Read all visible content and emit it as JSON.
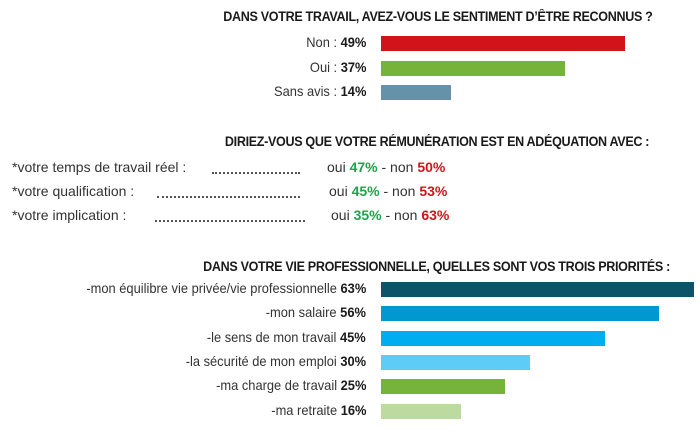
{
  "chart_data": [
    {
      "type": "bar",
      "title": "DANS VOTRE TRAVAIL, AVEZ-VOUS LE SENTIMENT D’ÊTRE RECONNUS ?",
      "categories": [
        "Non :",
        "Oui :",
        "Sans avis :"
      ],
      "values": [
        49,
        37,
        14
      ],
      "value_labels": [
        "49%",
        "37%",
        "14%"
      ],
      "colors": [
        "#d0141a",
        "#75b33a",
        "#6592a8"
      ],
      "orientation": "horizontal"
    },
    {
      "type": "table",
      "title": "DIRIEZ-VOUS QUE VOTRE RÉMUNÉRATION EST EN ADÉQUATION AVEC :",
      "rows": [
        {
          "label": "*votre temps de travail réel :",
          "oui_text": "oui",
          "oui": "47%",
          "sep": "- non",
          "non": "50%"
        },
        {
          "label": "*votre qualification :",
          "oui_text": "oui",
          "oui": "45%",
          "sep": "- non",
          "non": "53%"
        },
        {
          "label": "*votre implication :",
          "oui_text": "oui",
          "oui": "35%",
          "sep": "- non",
          "non": "63%"
        }
      ],
      "colors": {
        "oui": "#1aa64a",
        "non": "#d0141a"
      }
    },
    {
      "type": "bar",
      "title": "DANS VOTRE VIE PROFESSIONNELLE, QUELLES SONT VOS TROIS PRIORITÉS :",
      "categories": [
        "-mon équilibre vie privée/vie professionnelle",
        "-mon salaire",
        "-le sens de mon travail",
        "-la sécurité de mon emploi",
        "-ma charge de travail",
        "-ma retraite"
      ],
      "values": [
        63,
        56,
        45,
        30,
        25,
        16
      ],
      "value_labels": [
        "63%",
        "56%",
        "45%",
        "30%",
        "25%",
        "16%"
      ],
      "colors": [
        "#0d5468",
        "#0098cf",
        "#00aeef",
        "#5fcbf7",
        "#75b33a",
        "#bddba0"
      ],
      "orientation": "horizontal"
    }
  ]
}
